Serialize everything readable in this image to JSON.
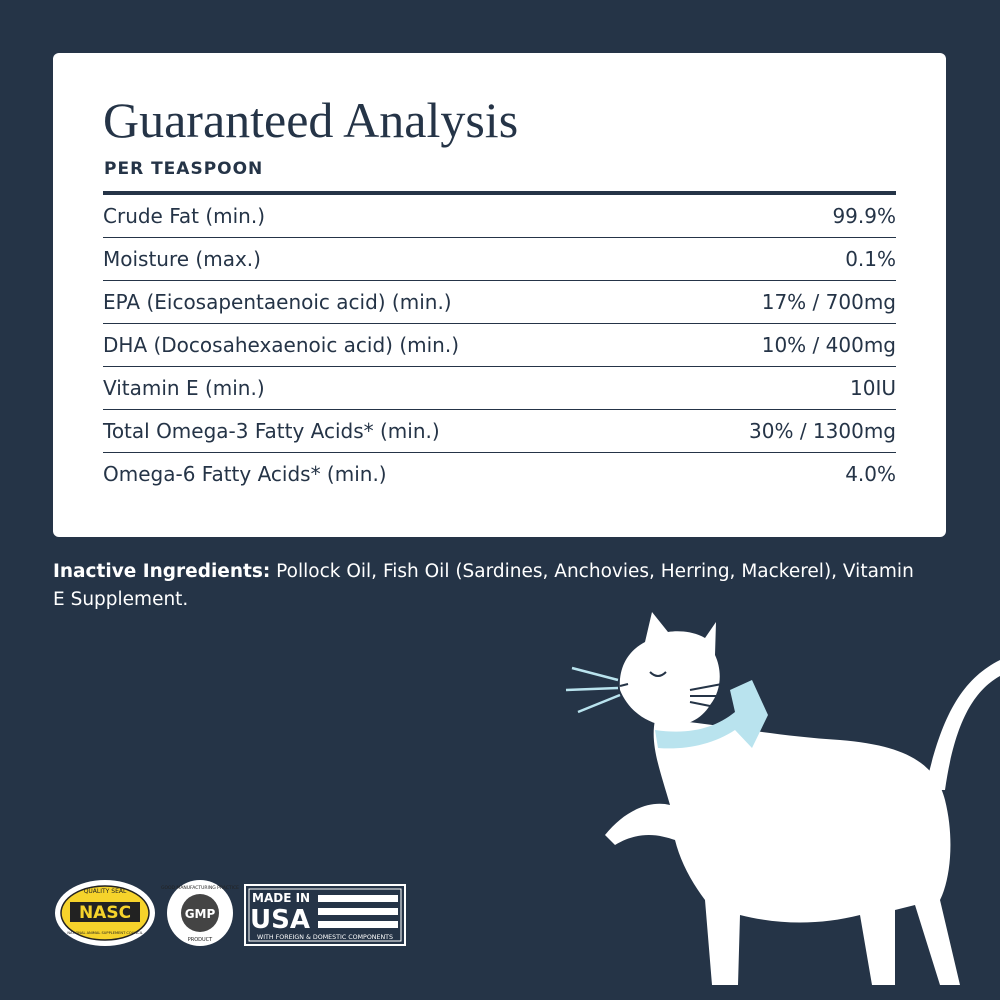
{
  "header": {
    "title": "Guaranteed Analysis",
    "subtitle": "PER TEASPOON"
  },
  "table": {
    "rows": [
      [
        "Crude Fat (min.)",
        "99.9%"
      ],
      [
        "Moisture (max.)",
        "0.1%"
      ],
      [
        "EPA (Eicosapentaenoic acid) (min.)",
        "17% / 700mg"
      ],
      [
        "DHA (Docosahexaenoic acid) (min.)",
        "10% / 400mg"
      ],
      [
        "Vitamin E (min.)",
        "10IU"
      ],
      [
        "Total Omega-3 Fatty Acids* (min.)",
        "30% / 1300mg"
      ],
      [
        "Omega-6 Fatty Acids* (min.)",
        "4.0%"
      ]
    ]
  },
  "inactive": {
    "label": "Inactive Ingredients:",
    "text": "Pollock Oil, Fish Oil (Sardines, Anchovies, Herring, Mackerel), Vitamin E Supplement."
  },
  "badges": {
    "nasc": {
      "top": "QUALITY SEAL",
      "name": "NASC",
      "bottom": "NATIONAL ANIMAL SUPPLEMENT COUNCIL"
    },
    "gmp": {
      "top": "GOOD MANUFACTURING PRACTICE",
      "name": "GMP",
      "bottom": "PRODUCT"
    },
    "usa": {
      "top": "MADE IN",
      "name": "USA",
      "bottom": "WITH FOREIGN & DOMESTIC COMPONENTS"
    }
  }
}
